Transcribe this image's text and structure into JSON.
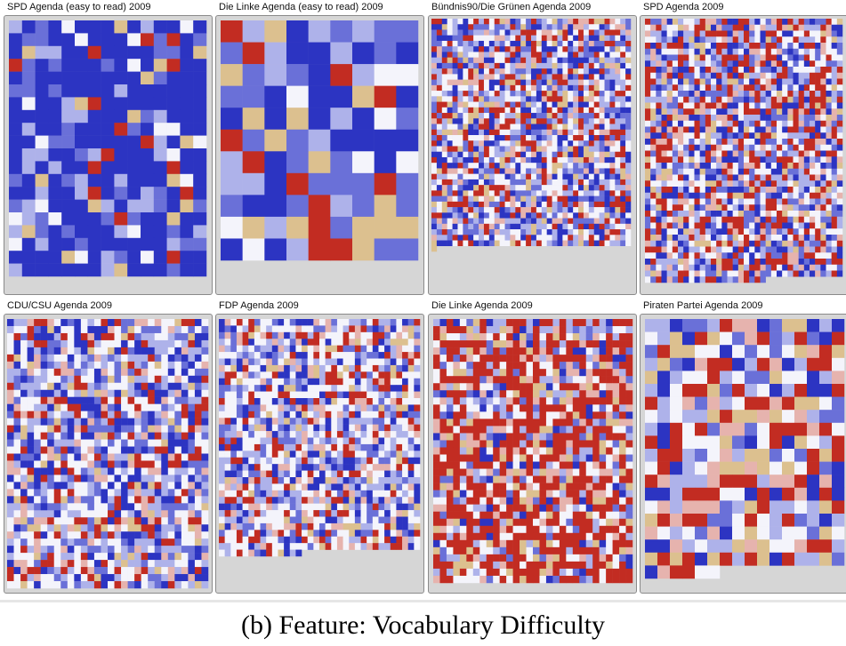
{
  "caption": "(b) Feature: Vocabulary Difficulty",
  "colors": {
    "very_hard": "#2c34c2",
    "hard": "#6a70d8",
    "somewhat_hard": "#aeb2ea",
    "neutral": "#f4f4fb",
    "somewhat_easy": "#e6b3ae",
    "easy": "#d9574c",
    "very_easy": "#c22c22",
    "highlight": "#dcc08f",
    "empty_background": "#d6d6d6"
  },
  "chart_data": {
    "type": "heatmap",
    "feature": "Vocabulary Difficulty",
    "panels": [
      {
        "title": "SPD Agenda (easy to read) 2009",
        "grid": {
          "columns": 15,
          "rows": 20,
          "filled_cells": 300
        },
        "distribution": {
          "very_hard": 0.58,
          "hard": 0.18,
          "somewhat_hard": 0.1,
          "neutral": 0.05,
          "highlight": 0.05,
          "very_easy": 0.04
        }
      },
      {
        "title": "Die Linke Agenda (easy to read) 2009",
        "grid": {
          "columns": 9,
          "rows": 11,
          "filled_cells": 99
        },
        "distribution": {
          "very_hard": 0.38,
          "hard": 0.16,
          "somewhat_hard": 0.12,
          "neutral": 0.06,
          "highlight": 0.14,
          "very_easy": 0.14
        }
      },
      {
        "title": "Bündnis90/Die Grünen Agenda 2009",
        "grid": {
          "columns": 38,
          "rows": 42,
          "filled_cells": 1559
        },
        "distribution": {
          "very_hard": 0.16,
          "hard": 0.16,
          "somewhat_hard": 0.16,
          "neutral": 0.2,
          "somewhat_easy": 0.08,
          "highlight": 0.06,
          "very_easy": 0.18
        }
      },
      {
        "title": "SPD Agenda 2009",
        "grid": {
          "columns": 36,
          "rows": 44,
          "filled_cells": 1570
        },
        "distribution": {
          "very_hard": 0.14,
          "hard": 0.14,
          "somewhat_hard": 0.14,
          "neutral": 0.18,
          "somewhat_easy": 0.1,
          "highlight": 0.06,
          "very_easy": 0.24
        }
      },
      {
        "title": "CDU/CSU Agenda 2009",
        "grid": {
          "columns": 30,
          "rows": 38,
          "filled_cells": 1140
        },
        "distribution": {
          "very_hard": 0.18,
          "hard": 0.16,
          "somewhat_hard": 0.16,
          "neutral": 0.22,
          "somewhat_easy": 0.08,
          "highlight": 0.06,
          "very_easy": 0.14
        }
      },
      {
        "title": "FDP Agenda 2009",
        "grid": {
          "columns": 34,
          "rows": 36,
          "filled_cells": 1204
        },
        "distribution": {
          "very_hard": 0.14,
          "hard": 0.14,
          "somewhat_hard": 0.16,
          "neutral": 0.26,
          "somewhat_easy": 0.1,
          "highlight": 0.06,
          "very_easy": 0.14
        }
      },
      {
        "title": "Die Linke Agenda 2009",
        "grid": {
          "columns": 30,
          "rows": 38,
          "filled_cells": 1110
        },
        "distribution": {
          "very_hard": 0.06,
          "hard": 0.08,
          "somewhat_hard": 0.1,
          "neutral": 0.14,
          "somewhat_easy": 0.1,
          "highlight": 0.08,
          "very_easy": 0.44
        }
      },
      {
        "title": "Piraten Partei Agenda 2009",
        "grid": {
          "columns": 16,
          "rows": 20,
          "filled_cells": 310
        },
        "distribution": {
          "very_hard": 0.1,
          "hard": 0.12,
          "somewhat_hard": 0.14,
          "neutral": 0.18,
          "somewhat_easy": 0.1,
          "highlight": 0.14,
          "very_easy": 0.22
        }
      }
    ]
  }
}
